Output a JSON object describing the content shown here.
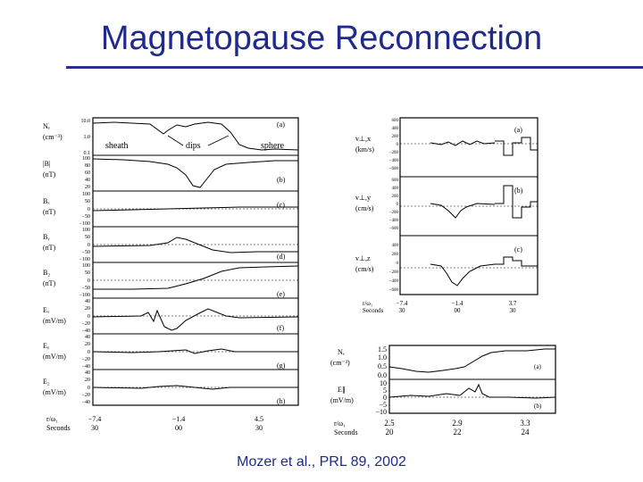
{
  "slide": {
    "title": "Magnetopause Reconnection",
    "caption": "Mozer et al., PRL 89, 2002",
    "accent_color": "#1f2a8a"
  },
  "left_figure": {
    "panels": [
      {
        "label": "Nₑ",
        "unit": "(cm⁻³)",
        "tag": "(a)",
        "ticks": [
          "10.0",
          "1.0",
          "0.1"
        ],
        "annotations": [
          "sheath",
          "dips",
          "sphere"
        ]
      },
      {
        "label": "|B|",
        "unit": "(nT)",
        "tag": "(b)",
        "ticks": [
          "100",
          "80",
          "60",
          "40",
          "20"
        ]
      },
      {
        "label": "Bₓ",
        "unit": "(nT)",
        "tag": "(c)",
        "ticks": [
          "100",
          "50",
          "0",
          "−50",
          "−100"
        ]
      },
      {
        "label": "Bᵧ",
        "unit": "(nT)",
        "tag": "(d)",
        "ticks": [
          "100",
          "50",
          "0",
          "−50",
          "−100"
        ]
      },
      {
        "label": "B₂",
        "unit": "(nT)",
        "tag": "(e)",
        "ticks": [
          "100",
          "50",
          "0",
          "−50",
          "−100"
        ]
      },
      {
        "label": "Eₓ",
        "unit": "(mV/m)",
        "tag": "(f)",
        "ticks": [
          "40",
          "20",
          "0",
          "−20",
          "−40"
        ]
      },
      {
        "label": "Eᵧ",
        "unit": "(mV/m)",
        "tag": "(g)",
        "ticks": [
          "40",
          "20",
          "0",
          "−20",
          "−40"
        ]
      },
      {
        "label": "E₂",
        "unit": "(mV/m)",
        "tag": "(h)",
        "ticks": [
          "40",
          "20",
          "0",
          "−20",
          "−40"
        ]
      }
    ],
    "x_axis": {
      "row1_label": "r/ω₁",
      "row2_label": "Seconds",
      "row1": [
        "−7.4",
        "−1.4",
        "4.5"
      ],
      "row2": [
        "30",
        "00",
        "30"
      ]
    }
  },
  "right_top_figure": {
    "panels": [
      {
        "label": "v⊥,x",
        "unit": "(km/s)",
        "tag": "(a)",
        "ticks": [
          "600",
          "400",
          "200",
          "0",
          "−200",
          "−400",
          "−600"
        ]
      },
      {
        "label": "v⊥,y",
        "unit": "(cm/s)",
        "tag": "(b)",
        "ticks": [
          "600",
          "400",
          "200",
          "0",
          "−200",
          "−400",
          "−600"
        ]
      },
      {
        "label": "v⊥,z",
        "unit": "(cm/s)",
        "tag": "(c)",
        "ticks": [
          "400",
          "200",
          "0",
          "−200",
          "−400",
          "−600"
        ]
      }
    ],
    "x_axis": {
      "row1_label": "r/ω₁",
      "row2_label": "Seconds",
      "row1": [
        "−7.4",
        "−1.4",
        "3.7"
      ],
      "row2": [
        "30",
        "00",
        "30"
      ]
    }
  },
  "right_bottom_figure": {
    "panels": [
      {
        "label": "Nₑ",
        "unit": "(cm⁻³)",
        "tag": "(a)",
        "ticks": [
          "1.5",
          "1.0",
          "0.5",
          "0.0"
        ]
      },
      {
        "label": "E∥",
        "unit": "(mV/m)",
        "tag": "(b)",
        "ticks": [
          "10",
          "5",
          "0",
          "−5",
          "−10"
        ]
      }
    ],
    "x_axis": {
      "row1_label": "r/ω₁",
      "row2_label": "Seconds",
      "row1": [
        "2.5",
        "2.9",
        "3.3"
      ],
      "row2": [
        "20",
        "22",
        "24"
      ]
    }
  }
}
